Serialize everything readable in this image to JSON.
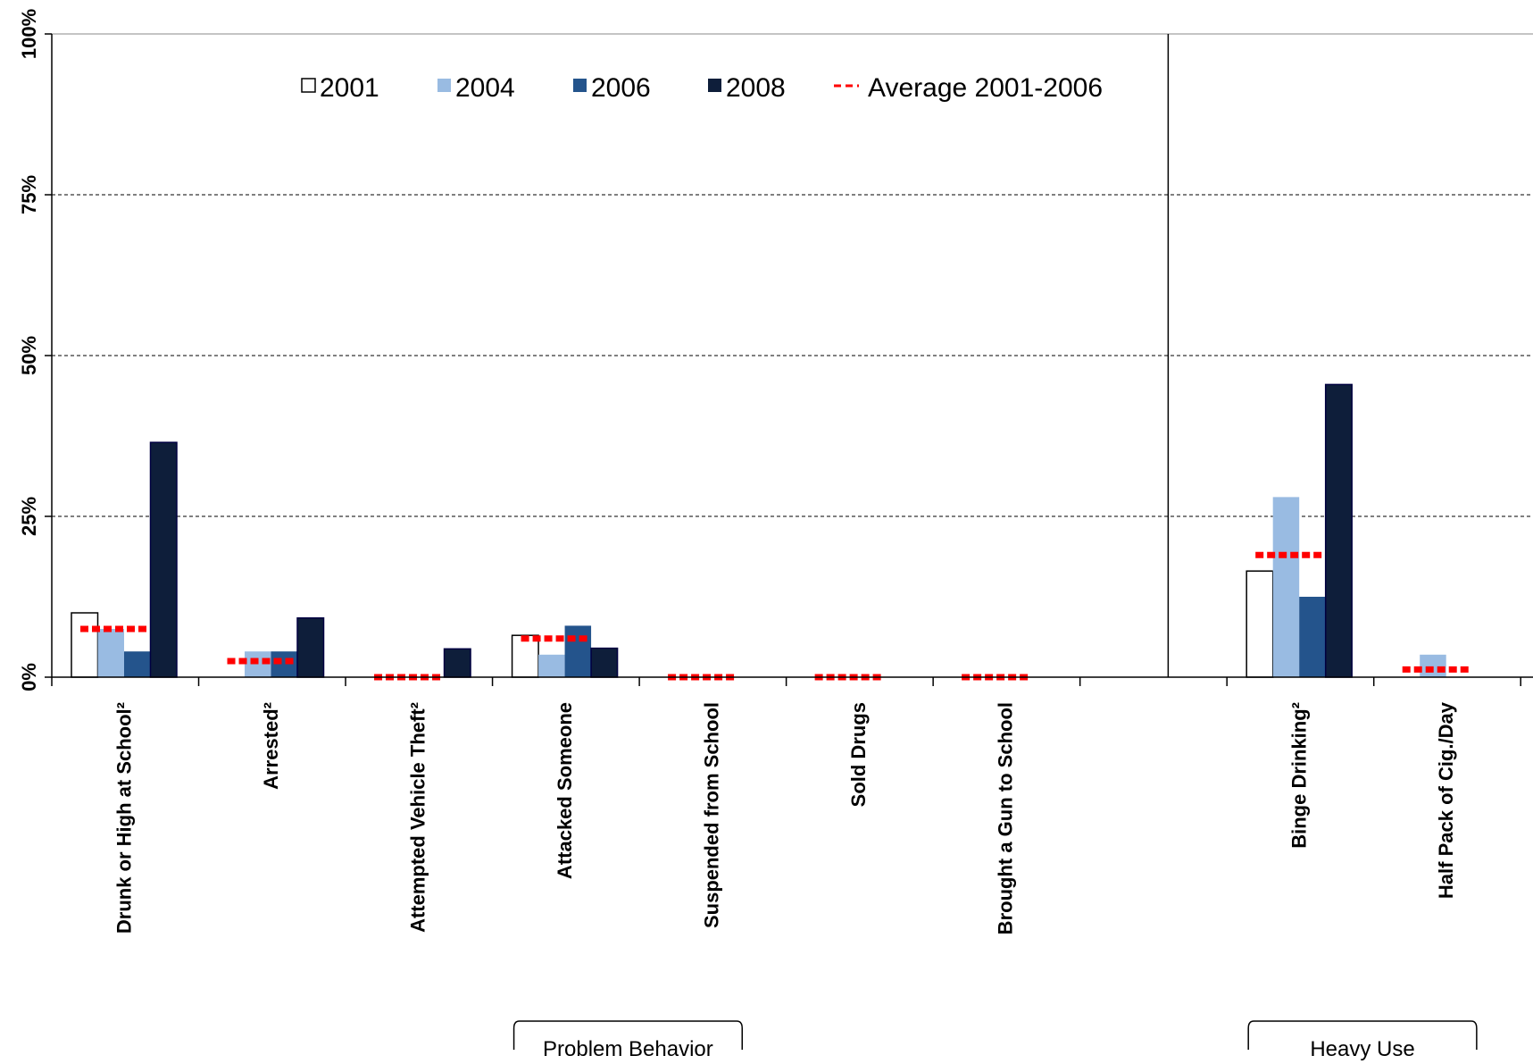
{
  "chart_data": {
    "type": "bar",
    "title": "",
    "xlabel": "",
    "ylabel": "",
    "ylim": [
      0,
      100
    ],
    "y_ticks": [
      "0%",
      "25%",
      "50%",
      "75%",
      "100%"
    ],
    "y_tick_values": [
      0,
      25,
      50,
      75,
      100
    ],
    "grid": "horizontal dashed",
    "legend_position": "top",
    "categories": [
      "Drunk or High at School²",
      "Arrested²",
      "Attempted  Vehicle Theft²",
      "Attacked  Someone",
      "Suspended from School",
      "Sold Drugs",
      "Brought a Gun to School",
      "",
      "Binge Drinking²",
      "Half Pack of Cig./Day"
    ],
    "series": [
      {
        "name": "2001",
        "color": "#ffffff",
        "values": [
          10,
          0,
          0,
          6.5,
          0,
          0,
          0,
          null,
          16.5,
          0
        ]
      },
      {
        "name": "2004",
        "color": "#99bbe2",
        "values": [
          7.5,
          4,
          0,
          3.5,
          0,
          0,
          0,
          null,
          28,
          3.5
        ]
      },
      {
        "name": "2006",
        "color": "#24548c",
        "values": [
          4,
          4,
          0,
          8,
          0,
          0,
          0,
          null,
          12.5,
          0
        ]
      },
      {
        "name": "2008",
        "color": "#0e1e3a",
        "values": [
          36.5,
          9.2,
          4.4,
          4.5,
          0,
          0,
          0,
          null,
          45.5,
          0
        ]
      }
    ],
    "average": {
      "name": "Average 2001-2006",
      "color": "#ff0000",
      "values": [
        7.5,
        2.5,
        0,
        6,
        0,
        0,
        0,
        null,
        19,
        1.2
      ]
    },
    "groups": [
      {
        "label": "Problem Behavior",
        "from_category": 3,
        "to_category": 4
      },
      {
        "label": "Heavy Use",
        "from_category": 8,
        "to_category": 9
      }
    ]
  }
}
